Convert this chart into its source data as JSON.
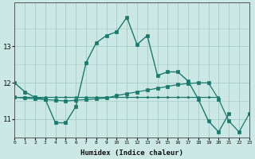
{
  "xlabel": "Humidex (Indice chaleur)",
  "background_color": "#cce8e4",
  "line_color": "#1a7a6e",
  "grid_color_major": "#aacfcb",
  "grid_color_minor": "#c2deda",
  "x_values": [
    0,
    1,
    2,
    3,
    4,
    5,
    6,
    7,
    8,
    9,
    10,
    11,
    12,
    13,
    14,
    15,
    16,
    17,
    18,
    19,
    20,
    21,
    22,
    23
  ],
  "series1": [
    12.0,
    11.75,
    11.6,
    11.55,
    10.9,
    10.9,
    11.35,
    12.55,
    13.1,
    13.3,
    13.4,
    13.8,
    13.05,
    13.3,
    12.2,
    12.3,
    12.3,
    12.05,
    11.55,
    10.95,
    10.65,
    11.15,
    null,
    null
  ],
  "series2": [
    11.6,
    11.58,
    11.56,
    11.54,
    11.52,
    11.5,
    11.52,
    11.54,
    11.56,
    11.58,
    11.65,
    11.7,
    11.75,
    11.8,
    11.85,
    11.9,
    11.95,
    11.98,
    12.0,
    12.0,
    11.55,
    10.95,
    10.65,
    11.15
  ],
  "series3": [
    11.6,
    11.6,
    11.6,
    11.6,
    11.6,
    11.6,
    11.6,
    11.6,
    11.6,
    11.6,
    11.6,
    11.6,
    11.6,
    11.6,
    11.6,
    11.6,
    11.6,
    11.6,
    11.6,
    11.6,
    11.6,
    null,
    null,
    null
  ],
  "ylim": [
    10.5,
    14.2
  ],
  "yticks": [
    11,
    12,
    13
  ],
  "xlim": [
    0,
    23
  ]
}
